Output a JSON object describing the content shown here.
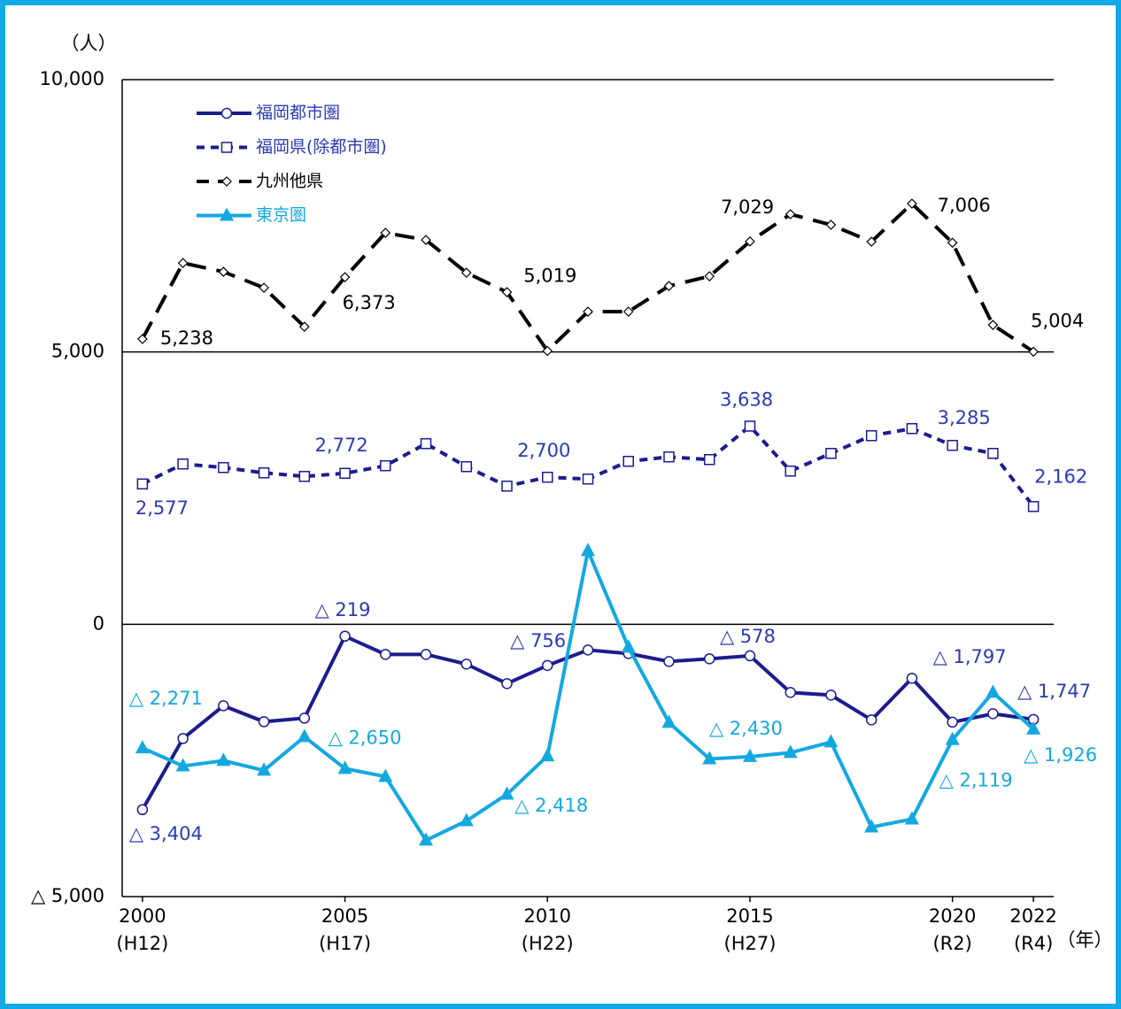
{
  "chart_data": {
    "type": "line",
    "y_unit_label": "（人）",
    "x_unit_label": "（年）",
    "x": [
      2000,
      2001,
      2002,
      2003,
      2004,
      2005,
      2006,
      2007,
      2008,
      2009,
      2010,
      2011,
      2012,
      2013,
      2014,
      2015,
      2016,
      2017,
      2018,
      2019,
      2020,
      2021,
      2022
    ],
    "xlim": [
      1999.5,
      2022.5
    ],
    "xticks": [
      {
        "value": 2000,
        "label": "2000"
      },
      {
        "value": 2005,
        "label": "2005"
      },
      {
        "value": 2010,
        "label": "2010"
      },
      {
        "value": 2015,
        "label": "2015"
      },
      {
        "value": 2020,
        "label": "2020"
      },
      {
        "value": 2022,
        "label": "2022"
      }
    ],
    "xtick_era_labels": [
      "(H12)",
      "(H17)",
      "(H22)",
      "(H27)",
      "(R2)",
      "(R4)"
    ],
    "ylim": [
      -5000,
      10000
    ],
    "yticks": [
      {
        "value": 10000,
        "label": "10,000"
      },
      {
        "value": 5000,
        "label": "5,000"
      },
      {
        "value": 0,
        "label": "0"
      },
      {
        "value": -5000,
        "label": "△ 5,000"
      }
    ],
    "grid": true,
    "legend": "upper left",
    "series": [
      {
        "name": "福岡都市圏",
        "color": "#1c1c8f",
        "label_color": "#2b3bb0",
        "marker": "circle",
        "line_style": "solid",
        "values": [
          -3404,
          -2098,
          -1496,
          -1789,
          -1724,
          -219,
          -553,
          -553,
          -732,
          -1089,
          -756,
          -472,
          -537,
          -683,
          -634,
          -578,
          -1252,
          -1301,
          -1756,
          -992,
          -1797,
          -1642,
          -1747
        ],
        "value_labels": [
          "△ 3,404",
          null,
          null,
          null,
          null,
          "△ 219",
          null,
          null,
          null,
          null,
          "△ 756",
          null,
          null,
          null,
          null,
          "△ 578",
          null,
          null,
          null,
          null,
          "△ 1,797",
          null,
          "△ 1,747"
        ]
      },
      {
        "name": "福岡県(除都市圏)",
        "color": "#1c1c8f",
        "label_color": "#2b3bb0",
        "marker": "square",
        "line_style": "dashed",
        "values": [
          2577,
          2943,
          2878,
          2780,
          2715,
          2772,
          2911,
          3317,
          2894,
          2537,
          2700,
          2667,
          2992,
          3073,
          3024,
          3638,
          2813,
          3138,
          3463,
          3593,
          3285,
          3138,
          2162
        ],
        "value_labels": [
          "2,577",
          null,
          null,
          null,
          null,
          "2,772",
          null,
          null,
          null,
          null,
          "2,700",
          null,
          null,
          null,
          null,
          "3,638",
          null,
          null,
          null,
          null,
          "3,285",
          null,
          "2,162"
        ]
      },
      {
        "name": "九州他県",
        "color": "#000000",
        "label_color": "#000000",
        "marker": "diamond",
        "line_style": "longdash",
        "values": [
          5238,
          6634,
          6472,
          6179,
          5463,
          6373,
          7187,
          7057,
          6455,
          6098,
          5019,
          5740,
          5740,
          6211,
          6390,
          7029,
          7529,
          7334,
          7025,
          7724,
          7006,
          5496,
          5004
        ],
        "value_labels": [
          "5,238",
          null,
          null,
          null,
          null,
          "6,373",
          null,
          null,
          null,
          null,
          "5,019",
          null,
          null,
          null,
          null,
          "7,029",
          null,
          null,
          null,
          null,
          "7,006",
          null,
          "5,004"
        ]
      },
      {
        "name": "東京圏",
        "color": "#14a8e0",
        "label_color": "#14a8e0",
        "marker": "triangle",
        "line_style": "solid",
        "values": [
          -2271,
          -2602,
          -2504,
          -2683,
          -2065,
          -2650,
          -2797,
          -3967,
          -3610,
          -3122,
          -2418,
          1350,
          -423,
          -1805,
          -2472,
          -2430,
          -2358,
          -2163,
          -3724,
          -3577,
          -2119,
          -1252,
          -1926
        ],
        "value_labels": [
          "△ 2,271",
          null,
          null,
          null,
          null,
          "△ 2,650",
          null,
          null,
          null,
          null,
          "△ 2,418",
          null,
          null,
          null,
          null,
          "△ 2,430",
          null,
          null,
          null,
          null,
          "△ 2,119",
          null,
          "△ 1,926"
        ]
      }
    ]
  }
}
